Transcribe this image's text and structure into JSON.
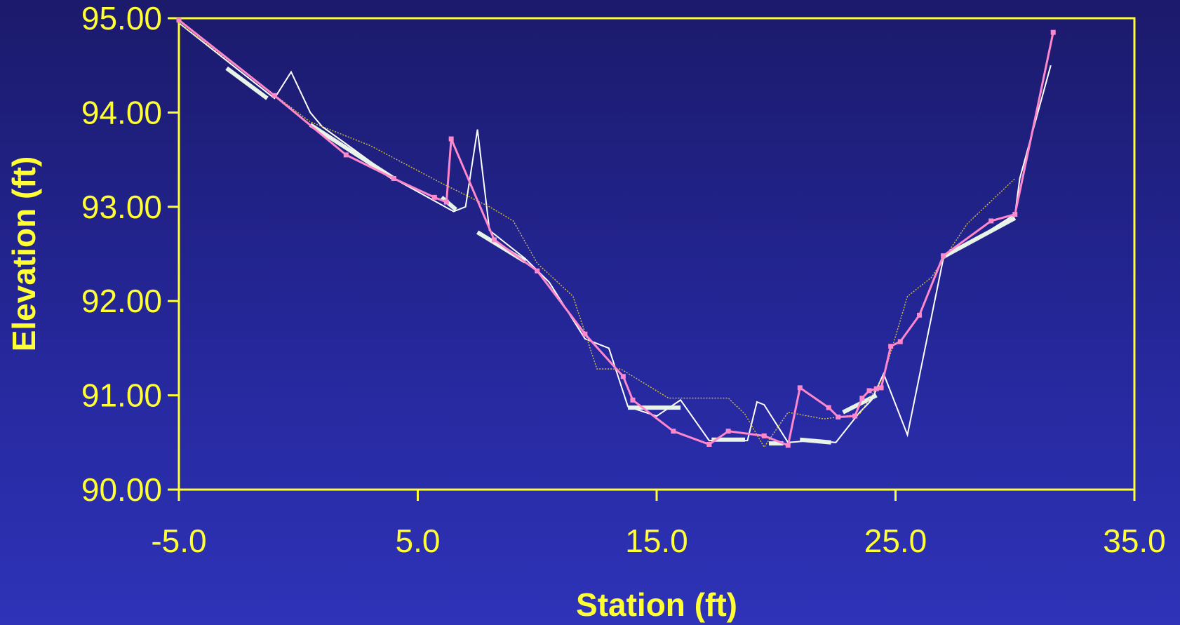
{
  "chart_data": {
    "type": "line",
    "title": "",
    "xlabel": "Station (ft)",
    "ylabel": "Elevation (ft)",
    "xlim": [
      -5.0,
      35.0
    ],
    "ylim": [
      90.0,
      95.0
    ],
    "x_ticks": [
      -5.0,
      5.0,
      15.0,
      25.0,
      35.0
    ],
    "x_tick_labels": [
      "-5.0",
      "5.0",
      "15.0",
      "25.0",
      "35.0"
    ],
    "y_ticks": [
      90.0,
      91.0,
      92.0,
      93.0,
      94.0,
      95.0
    ],
    "y_tick_labels": [
      "90.00",
      "91.00",
      "92.00",
      "93.00",
      "94.00",
      "95.00"
    ],
    "grid": false,
    "legend": false,
    "colors": {
      "axes": "#ffff33",
      "text": "#ffff33",
      "background_top": "#1b1a6b",
      "background_bottom": "#2e33b8"
    },
    "series": [
      {
        "color": "#ffffff",
        "style": "thin-solid",
        "x": [
          -5.0,
          -4.0,
          -1.0,
          -0.3,
          0.5,
          1.0,
          4.0,
          6.5,
          7.0,
          7.5,
          8.0,
          9.5,
          10.5,
          12.0,
          13.0,
          13.8,
          15.0,
          16.0,
          17.2,
          18.0,
          18.8,
          19.2,
          19.5,
          20.5,
          21.5,
          22.5,
          23.5,
          24.0,
          24.5,
          25.5,
          27.0,
          28.5,
          30.0,
          30.2,
          31.5
        ],
        "y": [
          94.95,
          94.75,
          94.15,
          94.43,
          94.0,
          93.85,
          93.3,
          92.95,
          93.0,
          93.82,
          92.75,
          92.45,
          92.2,
          91.6,
          91.5,
          90.88,
          90.78,
          90.95,
          90.52,
          90.52,
          90.52,
          90.93,
          90.9,
          90.5,
          90.52,
          90.5,
          90.82,
          90.95,
          91.23,
          90.58,
          92.45,
          92.68,
          92.92,
          93.3,
          94.5
        ]
      },
      {
        "color": "#e8f4e8",
        "style": "thick-segments",
        "segments": [
          {
            "x": [
              -3.0,
              -1.3
            ],
            "y": [
              94.47,
              94.15
            ]
          },
          {
            "x": [
              0.5,
              4.0
            ],
            "y": [
              93.87,
              93.3
            ]
          },
          {
            "x": [
              6.0,
              6.6
            ],
            "y": [
              93.1,
              92.97
            ]
          },
          {
            "x": [
              7.5,
              9.5
            ],
            "y": [
              92.73,
              92.42
            ]
          },
          {
            "x": [
              13.8,
              16.0
            ],
            "y": [
              90.87,
              90.87
            ]
          },
          {
            "x": [
              17.3,
              18.7
            ],
            "y": [
              90.53,
              90.53
            ]
          },
          {
            "x": [
              19.7,
              20.3
            ],
            "y": [
              90.49,
              90.49
            ]
          },
          {
            "x": [
              21.0,
              22.3
            ],
            "y": [
              90.53,
              90.5
            ]
          },
          {
            "x": [
              22.8,
              24.2
            ],
            "y": [
              90.82,
              91.0
            ]
          },
          {
            "x": [
              27.0,
              30.0
            ],
            "y": [
              92.47,
              92.88
            ]
          }
        ]
      },
      {
        "color": "#d4c23a",
        "style": "dotted",
        "x": [
          -5.0,
          0.5,
          3.0,
          6.0,
          8.0,
          9.0,
          10.0,
          11.5,
          12.5,
          13.5,
          15.5,
          16.5,
          18.0,
          18.7,
          19.5,
          20.5,
          22.0,
          23.5,
          24.5,
          25.5,
          26.5,
          28.0,
          30.0
        ],
        "y": [
          94.95,
          93.9,
          93.65,
          93.25,
          93.0,
          92.85,
          92.4,
          92.05,
          91.28,
          91.28,
          90.97,
          90.97,
          90.97,
          90.8,
          90.45,
          90.82,
          90.75,
          90.8,
          91.2,
          92.05,
          92.25,
          92.82,
          93.3
        ]
      },
      {
        "color": "#ff88cc",
        "style": "solid-markers",
        "x": [
          -5.0,
          -1.0,
          2.0,
          4.0,
          5.7,
          6.2,
          6.4,
          8.2,
          10.0,
          12.0,
          13.6,
          14.0,
          15.7,
          17.2,
          18.0,
          19.5,
          20.5,
          21.0,
          22.2,
          22.6,
          23.3,
          23.6,
          23.9,
          24.2,
          24.4,
          24.8,
          25.2,
          26.0,
          27.0,
          29.0,
          30.0,
          31.6
        ],
        "y": [
          94.98,
          94.18,
          93.55,
          93.3,
          93.1,
          93.05,
          93.72,
          92.65,
          92.32,
          91.65,
          91.2,
          90.95,
          90.62,
          90.48,
          90.62,
          90.57,
          90.47,
          91.08,
          90.87,
          90.77,
          90.78,
          90.97,
          91.05,
          91.07,
          91.08,
          91.52,
          91.57,
          91.85,
          92.48,
          92.85,
          92.92,
          94.85
        ]
      }
    ]
  }
}
